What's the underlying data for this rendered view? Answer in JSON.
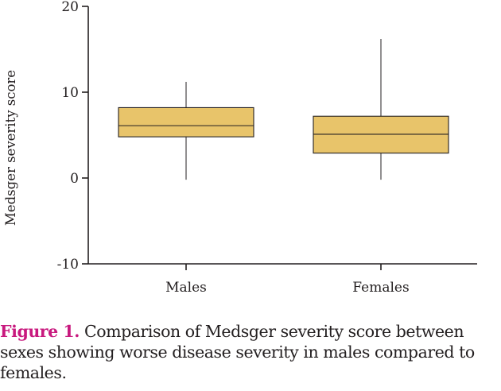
{
  "chart_data": {
    "type": "boxplot",
    "ylabel": "Medsger severity score",
    "ylim": [
      -10,
      20
    ],
    "yticks": [
      -10,
      0,
      10,
      20
    ],
    "grid": false,
    "categories": [
      "Males",
      "Females"
    ],
    "boxes": [
      {
        "name": "Males",
        "min": -0.2,
        "q1": 4.8,
        "median": 6.1,
        "q3": 8.2,
        "max": 11.2
      },
      {
        "name": "Females",
        "min": -0.2,
        "q1": 2.9,
        "median": 5.1,
        "q3": 7.2,
        "max": 16.2
      }
    ],
    "box_color": "#e8c46a",
    "line_color": "#231f20"
  },
  "caption": {
    "label": "Figure 1.",
    "text": "Comparison of Medsger severity score between sexes showing worse disease severity in males compared to females.",
    "label_color": "#c8197e"
  }
}
